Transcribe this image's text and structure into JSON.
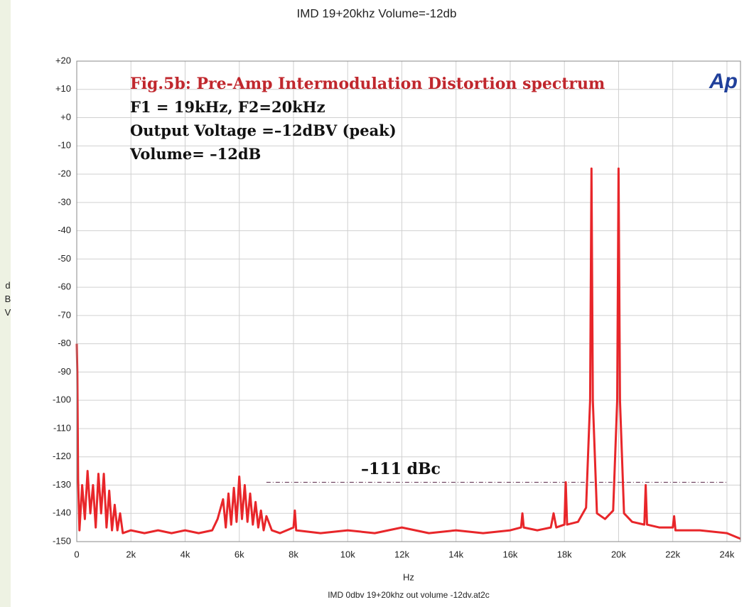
{
  "chart_data": {
    "type": "line",
    "title": "IMD 19+20khz Volume=-12db",
    "x_label": "Hz",
    "y_label": "dBV",
    "footer": "IMD 0dbv 19+20khz out volume -12dv.at2c",
    "logo": "Ap",
    "annotations": [
      "Fig.5b: Pre-Amp Intermodulation Distortion spectrum",
      "F1 = 19kHz,   F2=20kHz",
      "Output Voltage =–12dBV (peak)",
      "Volume= –12dB"
    ],
    "dbc_label": "–111 dBc",
    "dbc_line": {
      "value": -129,
      "x": [
        7000,
        24000
      ]
    },
    "xlim": [
      0,
      24500
    ],
    "ylim": [
      -150,
      20
    ],
    "xticks": [
      0,
      {
        "value": 2000,
        "label": "2k"
      },
      {
        "value": 4000,
        "label": "4k"
      },
      {
        "value": 6000,
        "label": "6k"
      },
      {
        "value": 8000,
        "label": "8k"
      },
      {
        "value": 10000,
        "label": "10k"
      },
      {
        "value": 12000,
        "label": "12k"
      },
      {
        "value": 14000,
        "label": "14k"
      },
      {
        "value": 16000,
        "label": "16k"
      },
      {
        "value": 18000,
        "label": "18k"
      },
      {
        "value": 20000,
        "label": "20k"
      },
      {
        "value": 22000,
        "label": "22k"
      },
      {
        "value": 24000,
        "label": "24k"
      }
    ],
    "yticks": [
      {
        "value": 20,
        "label": "+20"
      },
      {
        "value": 10,
        "label": "+10"
      },
      {
        "value": 0,
        "label": "+0"
      },
      -10,
      -20,
      -30,
      -40,
      -50,
      -60,
      -70,
      -80,
      -90,
      -100,
      -110,
      -120,
      -130,
      -140,
      -150
    ],
    "grid": true,
    "series": [
      {
        "name": "spectrum",
        "color": "#e8262a",
        "x": [
          0,
          20,
          50,
          100,
          200,
          300,
          400,
          500,
          600,
          700,
          800,
          900,
          1000,
          1100,
          1200,
          1300,
          1400,
          1500,
          1600,
          1700,
          2000,
          2500,
          3000,
          3500,
          4000,
          4500,
          5000,
          5200,
          5400,
          5500,
          5600,
          5700,
          5800,
          5900,
          6000,
          6100,
          6200,
          6300,
          6400,
          6500,
          6600,
          6700,
          6800,
          6900,
          7000,
          7200,
          7500,
          8000,
          8050,
          8100,
          9000,
          10000,
          11000,
          12000,
          13000,
          14000,
          15000,
          16000,
          16400,
          16450,
          16500,
          17000,
          17500,
          17600,
          17700,
          18000,
          18050,
          18100,
          18500,
          18800,
          18950,
          19000,
          19050,
          19200,
          19500,
          19800,
          19950,
          20000,
          20050,
          20200,
          20500,
          20950,
          21000,
          21050,
          21500,
          22000,
          22050,
          22100,
          23000,
          24000,
          24500
        ],
        "values": [
          -80,
          -90,
          -128,
          -146,
          -130,
          -142,
          -125,
          -140,
          -130,
          -145,
          -126,
          -140,
          -126,
          -145,
          -132,
          -146,
          -137,
          -146,
          -140,
          -147,
          -146,
          -147,
          -146,
          -147,
          -146,
          -147,
          -146,
          -142,
          -135,
          -145,
          -133,
          -144,
          -131,
          -143,
          -127,
          -142,
          -130,
          -143,
          -133,
          -144,
          -136,
          -145,
          -139,
          -146,
          -141,
          -146,
          -147,
          -145,
          -139,
          -146,
          -147,
          -146,
          -147,
          -145,
          -147,
          -146,
          -147,
          -146,
          -145,
          -140,
          -145,
          -146,
          -145,
          -140,
          -145,
          -144,
          -129,
          -144,
          -143,
          -138,
          -100,
          -18,
          -100,
          -140,
          -142,
          -139,
          -100,
          -18,
          -100,
          -140,
          -143,
          -144,
          -130,
          -144,
          -145,
          -145,
          -141,
          -146,
          -146,
          -147,
          -149
        ]
      }
    ]
  }
}
